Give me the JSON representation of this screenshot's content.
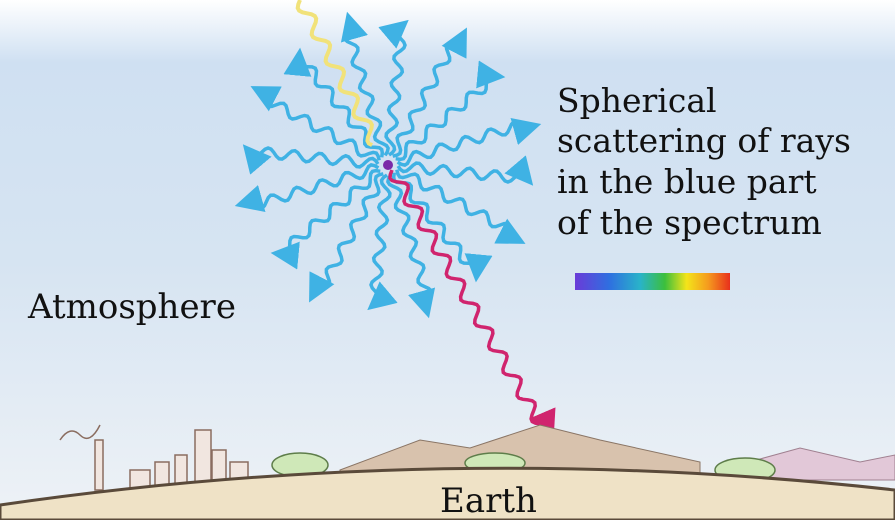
{
  "caption": {
    "lines": [
      "Spherical",
      "scattering of rays",
      "in the blue part",
      "of the spectrum"
    ]
  },
  "atmosphere": "Atmosphere",
  "earth": "Earth"
}
